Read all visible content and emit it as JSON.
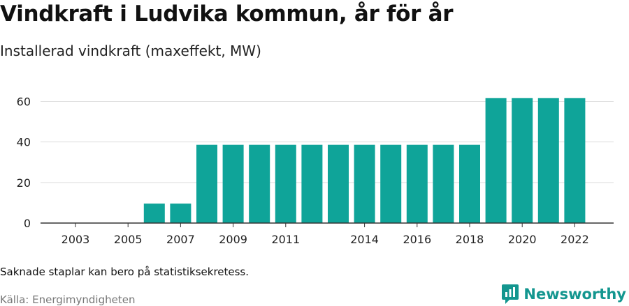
{
  "header": {
    "title": "Vindkraft i Ludvika kommun, år för år",
    "subtitle": "Installerad vindkraft (maxeffekt, MW)"
  },
  "footer": {
    "note": "Saknade staplar kan bero på statistiksekretess.",
    "source": "Källa: Energimyndigheten",
    "brand": "Newsworthy",
    "brand_icon": "bar-chart-logo-icon"
  },
  "colors": {
    "bar": "#0fa499",
    "brand": "#13968f",
    "grid": "#dddddd",
    "axis": "#333333"
  },
  "chart_data": {
    "type": "bar",
    "title": "Vindkraft i Ludvika kommun, år för år",
    "subtitle": "Installerad vindkraft (maxeffekt, MW)",
    "categories": [
      "2003",
      "2004",
      "2005",
      "2006",
      "2007",
      "2008",
      "2009",
      "2010",
      "2011",
      "2012",
      "2013",
      "2014",
      "2015",
      "2016",
      "2017",
      "2018",
      "2019",
      "2020",
      "2021",
      "2022"
    ],
    "values": [
      null,
      null,
      null,
      9.6,
      9.6,
      38.6,
      38.6,
      38.6,
      38.6,
      38.6,
      38.6,
      38.6,
      38.6,
      38.6,
      38.6,
      38.6,
      61.6,
      61.6,
      61.6,
      61.6
    ],
    "x_tick_labels": [
      "2003",
      "2005",
      "2007",
      "2009",
      "2011",
      "2014",
      "2016",
      "2018",
      "2020",
      "2022"
    ],
    "y_ticks": [
      0,
      20,
      40,
      60
    ],
    "ylim": [
      0,
      66
    ],
    "grid": true,
    "legend": "none"
  }
}
